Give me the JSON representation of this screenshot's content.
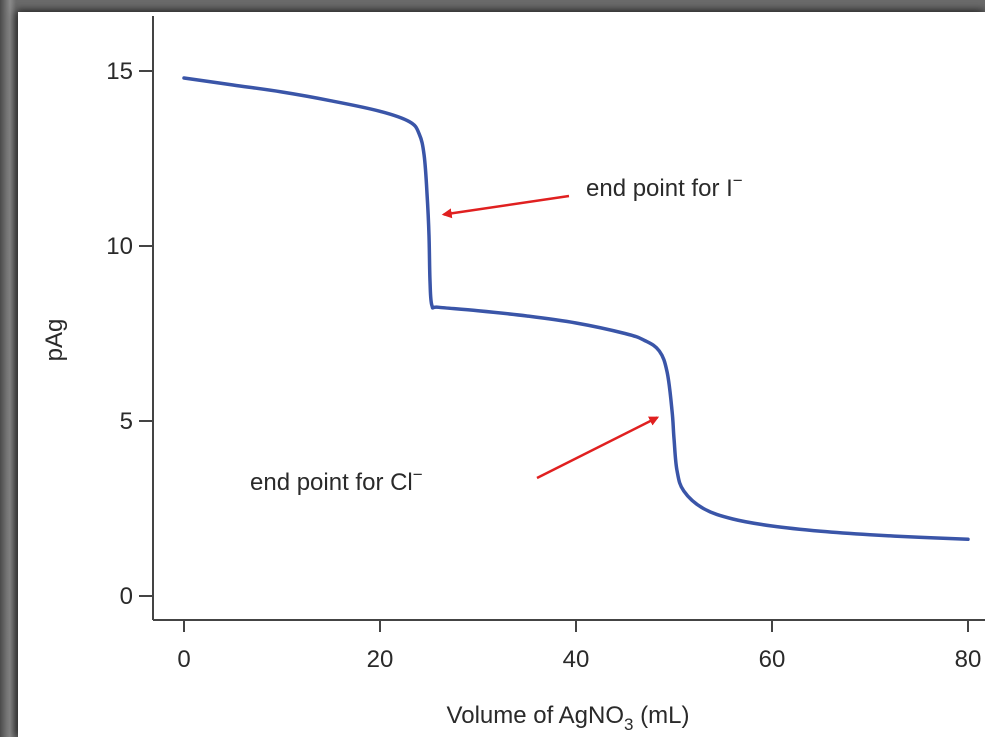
{
  "chart_data": {
    "type": "line",
    "xlabel_main": "Volume of AgNO",
    "xlabel_sub": "3",
    "xlabel_tail": " (mL)",
    "ylabel": "pAg",
    "xlim": [
      0,
      80
    ],
    "ylim": [
      0,
      15
    ],
    "xticks": [
      0,
      20,
      40,
      60,
      80
    ],
    "xtick_labels": [
      "0",
      "20",
      "40",
      "60",
      "80"
    ],
    "yticks": [
      0,
      5,
      10,
      15
    ],
    "ytick_labels": [
      "0",
      "5",
      "10",
      "15"
    ],
    "grid": false,
    "series": [
      {
        "color": "#3a55a8",
        "x": [
          0,
          5,
          10,
          15,
          20,
          23,
          24,
          24.5,
          24.8,
          25,
          25.1,
          25.3,
          26,
          30,
          35,
          40,
          45,
          47,
          48.5,
          49.3,
          49.8,
          50,
          50.3,
          51,
          53,
          56,
          60,
          65,
          70,
          75,
          80
        ],
        "y": [
          14.8,
          14.6,
          14.4,
          14.15,
          13.85,
          13.55,
          13.2,
          12.6,
          11.5,
          10.3,
          9.0,
          8.3,
          8.25,
          8.15,
          8.0,
          7.8,
          7.5,
          7.3,
          7.0,
          6.4,
          5.3,
          4.5,
          3.6,
          3.0,
          2.5,
          2.2,
          2.0,
          1.85,
          1.75,
          1.68,
          1.62
        ]
      }
    ],
    "annotations": [
      {
        "text": "end point for I",
        "superscript": "−",
        "arrow_to": [
          26.5,
          10.9
        ],
        "arrow_color": "#e02020"
      },
      {
        "text": "end point for Cl",
        "superscript": "−",
        "arrow_to": [
          48.3,
          5.1
        ],
        "arrow_color": "#e02020"
      }
    ]
  }
}
